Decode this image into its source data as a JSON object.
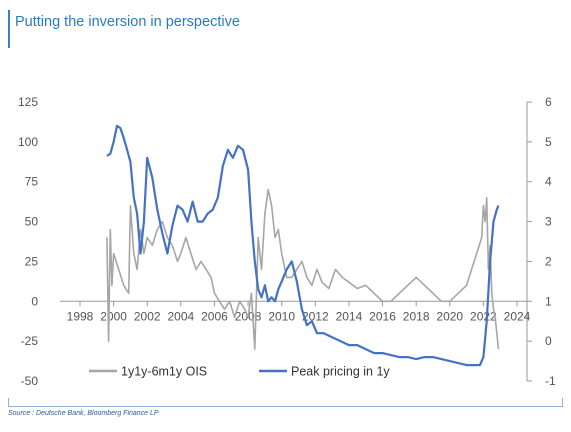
{
  "header": {
    "title": "Putting the inversion in perspective"
  },
  "footer": {
    "source": "Source : Deutsche Bank, Bloomberg Finance LP"
  },
  "chart_data": {
    "type": "line",
    "title": "Putting the inversion in perspective",
    "x_ticks": [
      "1998",
      "2000",
      "2002",
      "2004",
      "2006",
      "2008",
      "2010",
      "2012",
      "2014",
      "2016",
      "2018",
      "2020",
      "2022",
      "2024"
    ],
    "xlim": [
      1998,
      2024
    ],
    "y_left": {
      "ticks": [
        "125",
        "100",
        "75",
        "50",
        "25",
        "0",
        "-25",
        "-50"
      ],
      "ylim": [
        -50,
        125
      ]
    },
    "y_right": {
      "ticks": [
        "6",
        "5",
        "4",
        "3",
        "2",
        "1",
        "0",
        "-1"
      ],
      "ylim": [
        -1,
        6
      ]
    },
    "grid": false,
    "legend_position": "bottom",
    "series": [
      {
        "name": "1y1y-6m1y OIS",
        "axis": "left",
        "color": "#a6a6a6",
        "x": [
          1999.6,
          1999.7,
          1999.8,
          1999.9,
          2000.0,
          2000.3,
          2000.6,
          2000.9,
          2001.0,
          2001.2,
          2001.4,
          2001.6,
          2001.8,
          2002.0,
          2002.3,
          2002.6,
          2002.9,
          2003.2,
          2003.5,
          2003.8,
          2004.0,
          2004.3,
          2004.6,
          2004.9,
          2005.2,
          2005.5,
          2005.8,
          2006.0,
          2006.3,
          2006.6,
          2006.9,
          2007.2,
          2007.5,
          2007.8,
          2008.0,
          2008.2,
          2008.4,
          2008.6,
          2008.8,
          2009.0,
          2009.2,
          2009.4,
          2009.6,
          2009.8,
          2010.0,
          2010.3,
          2010.6,
          2010.9,
          2011.2,
          2011.5,
          2011.8,
          2012.1,
          2012.4,
          2012.8,
          2013.2,
          2013.6,
          2014.0,
          2014.5,
          2015.0,
          2015.5,
          2016.0,
          2016.5,
          2017.0,
          2017.5,
          2018.0,
          2018.5,
          2019.0,
          2019.5,
          2020.0,
          2020.5,
          2021.0,
          2021.3,
          2021.6,
          2021.9,
          2022.0,
          2022.1,
          2022.2,
          2022.3,
          2022.4,
          2022.5,
          2022.6,
          2022.7,
          2022.8,
          2022.9
        ],
        "values": [
          40,
          -25,
          45,
          10,
          30,
          20,
          10,
          5,
          60,
          30,
          20,
          45,
          30,
          40,
          35,
          45,
          50,
          40,
          35,
          25,
          30,
          40,
          30,
          20,
          25,
          20,
          15,
          5,
          0,
          -5,
          0,
          -10,
          0,
          -5,
          -10,
          5,
          -30,
          40,
          20,
          55,
          70,
          60,
          40,
          45,
          30,
          15,
          15,
          20,
          25,
          15,
          10,
          20,
          12,
          8,
          20,
          15,
          12,
          8,
          10,
          5,
          0,
          0,
          5,
          10,
          15,
          10,
          5,
          0,
          0,
          5,
          10,
          20,
          30,
          40,
          60,
          50,
          65,
          20,
          35,
          5,
          -5,
          -10,
          -20,
          -30
        ]
      },
      {
        "name": "Peak pricing in 1y",
        "axis": "right",
        "color": "#4472c4",
        "x": [
          1999.6,
          1999.8,
          2000.0,
          2000.2,
          2000.4,
          2000.6,
          2000.8,
          2001.0,
          2001.2,
          2001.4,
          2001.6,
          2001.8,
          2002.0,
          2002.3,
          2002.6,
          2002.9,
          2003.2,
          2003.5,
          2003.8,
          2004.1,
          2004.4,
          2004.7,
          2005.0,
          2005.3,
          2005.6,
          2005.9,
          2006.2,
          2006.5,
          2006.8,
          2007.1,
          2007.4,
          2007.7,
          2008.0,
          2008.2,
          2008.4,
          2008.6,
          2008.8,
          2009.0,
          2009.2,
          2009.4,
          2009.6,
          2009.8,
          2010.0,
          2010.3,
          2010.6,
          2010.9,
          2011.2,
          2011.5,
          2011.8,
          2012.1,
          2012.5,
          2013.0,
          2013.5,
          2014.0,
          2014.5,
          2015.0,
          2015.5,
          2016.0,
          2016.5,
          2017.0,
          2017.5,
          2018.0,
          2018.5,
          2019.0,
          2019.5,
          2020.0,
          2020.5,
          2021.0,
          2021.5,
          2021.8,
          2022.0,
          2022.2,
          2022.4,
          2022.6,
          2022.8,
          2022.9
        ],
        "values": [
          4.65,
          4.7,
          5.0,
          5.4,
          5.35,
          5.1,
          4.8,
          4.5,
          3.6,
          3.2,
          2.2,
          3.0,
          4.6,
          4.1,
          3.3,
          2.7,
          2.2,
          2.9,
          3.4,
          3.3,
          3.0,
          3.5,
          3.0,
          3.0,
          3.2,
          3.3,
          3.6,
          4.4,
          4.8,
          4.6,
          4.9,
          4.8,
          4.3,
          3.0,
          2.0,
          1.3,
          1.1,
          1.4,
          1.0,
          1.1,
          1.0,
          1.3,
          1.5,
          1.8,
          2.0,
          1.5,
          0.8,
          0.4,
          0.5,
          0.2,
          0.2,
          0.1,
          0.0,
          -0.1,
          -0.1,
          -0.2,
          -0.3,
          -0.3,
          -0.35,
          -0.4,
          -0.4,
          -0.45,
          -0.4,
          -0.4,
          -0.45,
          -0.5,
          -0.55,
          -0.6,
          -0.6,
          -0.6,
          -0.4,
          0.5,
          2.0,
          3.0,
          3.3,
          3.4
        ]
      }
    ]
  }
}
